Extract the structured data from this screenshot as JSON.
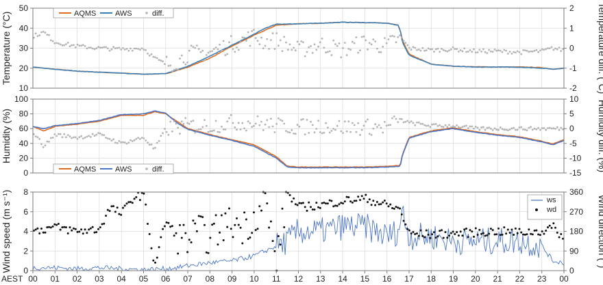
{
  "chart_data": [
    {
      "type": "line",
      "panel": "temperature",
      "ylabel": "Temperature (°C)",
      "y2label": "Temperature diff. (°C)",
      "ylim": [
        10,
        50
      ],
      "yticks": [
        "10",
        "20",
        "30",
        "40",
        "50"
      ],
      "y2lim": [
        -2,
        2
      ],
      "y2ticks": [
        "-2",
        "-1",
        "0",
        "1",
        "2"
      ],
      "legend_position": "top-left",
      "grid": true,
      "series": [
        {
          "name": "AQMS",
          "color": "#e06c1f",
          "x": [
            0,
            1,
            2,
            3,
            4,
            5,
            6,
            7,
            8,
            9,
            10,
            10.5,
            11,
            12,
            13,
            14,
            15,
            16,
            16.5,
            16.6,
            16.7,
            17,
            18,
            19,
            20,
            21,
            22,
            23,
            23.5,
            24
          ],
          "values": [
            20.5,
            19.5,
            18.5,
            18,
            17.5,
            17,
            17.2,
            20.5,
            25,
            31,
            36.5,
            39,
            41.5,
            42.2,
            42.5,
            43,
            42.8,
            42.5,
            41.5,
            39,
            34,
            27,
            22,
            21,
            20.7,
            20.6,
            20.6,
            20.3,
            19.5,
            20
          ]
        },
        {
          "name": "AWS",
          "color": "#3b7fb8",
          "x": [
            0,
            1,
            2,
            3,
            4,
            5,
            6,
            7,
            8,
            9,
            10,
            10.5,
            11,
            12,
            13,
            14,
            15,
            16,
            16.5,
            16.6,
            16.7,
            17,
            18,
            19,
            20,
            21,
            22,
            23,
            23.5,
            24
          ],
          "values": [
            20.5,
            19.5,
            18.5,
            18,
            17.5,
            17,
            17.3,
            21,
            26,
            31.5,
            37,
            40,
            42,
            42.2,
            42.5,
            43,
            42.8,
            42.5,
            41.5,
            39,
            33,
            26.5,
            22,
            21,
            20.5,
            20.6,
            20.5,
            20,
            19.5,
            20
          ]
        },
        {
          "name": "diff.",
          "color": "#b3b3b3",
          "x": [
            0,
            0.5,
            1,
            1.5,
            2,
            3,
            4,
            5,
            5.5,
            6,
            6.5,
            7,
            8,
            9,
            10,
            10.5,
            11,
            12,
            13,
            14,
            15,
            16,
            16.6,
            17,
            18,
            19,
            20,
            21,
            22,
            23,
            23.5,
            24
          ],
          "values": [
            0.6,
            0.8,
            0.3,
            0.2,
            0.1,
            0.0,
            -0.05,
            0.0,
            -0.5,
            -0.8,
            -0.7,
            -0.3,
            -0.2,
            0.2,
            0.6,
            0.3,
            0.4,
            -0.1,
            0.2,
            -0.1,
            0.3,
            0.1,
            0.6,
            0.0,
            -0.1,
            -0.05,
            -0.15,
            -0.15,
            -0.2,
            -0.15,
            0.0,
            -0.1
          ]
        }
      ]
    },
    {
      "type": "line",
      "panel": "humidity",
      "ylabel": "Humidity (%)",
      "y2label": "Humidity diff. (%)",
      "ylim": [
        0,
        100
      ],
      "yticks": [
        "0",
        "20",
        "40",
        "60",
        "80",
        "100"
      ],
      "y2lim": [
        -15,
        10
      ],
      "y2ticks": [
        "-15",
        "-10",
        "-5",
        "0",
        "5",
        "10"
      ],
      "legend_position": "bottom-left",
      "grid": true,
      "series": [
        {
          "name": "AQMS",
          "color": "#e06c1f",
          "x": [
            0,
            0.5,
            1,
            2,
            3,
            4,
            5,
            5.5,
            6,
            6.5,
            7,
            8,
            9,
            10,
            11,
            11.5,
            12,
            13,
            14,
            15,
            16,
            16.6,
            16.7,
            17,
            18,
            19,
            20,
            21,
            22,
            23,
            23.5,
            24
          ],
          "values": [
            63,
            57,
            63,
            66,
            70,
            78,
            78,
            83,
            80,
            70,
            60,
            52,
            45,
            38,
            22,
            9,
            8,
            8,
            8,
            8,
            9,
            10,
            25,
            48,
            57,
            61,
            56,
            52,
            49,
            43,
            39,
            45
          ]
        },
        {
          "name": "AWS",
          "color": "#4a74c4",
          "x": [
            0,
            0.5,
            1,
            2,
            3,
            4,
            5,
            5.5,
            6,
            6.5,
            7,
            8,
            9,
            10,
            11,
            11.5,
            12,
            13,
            14,
            15,
            16,
            16.6,
            16.7,
            17,
            18,
            19,
            20,
            21,
            22,
            23,
            23.5,
            24
          ],
          "values": [
            63,
            60,
            64,
            67,
            71,
            79,
            80,
            84,
            81,
            68,
            59,
            51,
            44,
            36,
            20,
            8,
            7,
            7,
            7,
            7,
            8,
            9,
            24,
            47,
            56,
            60,
            55,
            51,
            48,
            42,
            38,
            44
          ]
        },
        {
          "name": "diff.",
          "color": "#b3b3b3",
          "x": [
            0,
            0.5,
            1,
            2,
            3,
            4,
            5,
            5.5,
            6,
            7,
            8,
            9,
            10,
            11,
            12,
            13,
            14,
            15,
            16,
            16.6,
            17,
            18,
            19,
            20,
            21,
            22,
            23,
            24
          ],
          "values": [
            -1,
            -6,
            -2,
            -3,
            -2,
            -5,
            -3,
            -7,
            0,
            1,
            1,
            2,
            2,
            1,
            0.5,
            1,
            0.5,
            0.5,
            0.5,
            3,
            2,
            1,
            1,
            0,
            0,
            0,
            0,
            0
          ]
        }
      ]
    },
    {
      "type": "line",
      "panel": "wind",
      "ylabel": "Wind speed (m s⁻¹)",
      "y2label": "Wind direction (°)",
      "ylim": [
        0,
        8
      ],
      "yticks": [
        "0",
        "2",
        "4",
        "6",
        "8"
      ],
      "y2lim": [
        0,
        360
      ],
      "y2ticks": [
        "0",
        "90",
        "180",
        "270",
        "360"
      ],
      "legend_position": "top-right",
      "grid": true,
      "series": [
        {
          "name": "ws",
          "color": "#4a74c4",
          "x": [
            0,
            1,
            2,
            3,
            4,
            5,
            6,
            6.5,
            7,
            8,
            9,
            10,
            10.5,
            11,
            11.5,
            12,
            13,
            14,
            15,
            16,
            16.5,
            16.7,
            17,
            18,
            19,
            20,
            21,
            22,
            23,
            23.5,
            24
          ],
          "values": [
            0.3,
            0.3,
            0.2,
            0.3,
            0.2,
            0.1,
            0.2,
            0.3,
            0.5,
            0.8,
            1,
            1.5,
            2,
            2.5,
            3,
            4,
            4,
            4.5,
            4.5,
            3.5,
            4,
            6,
            3.5,
            3.5,
            3,
            3,
            3,
            3,
            2.5,
            1,
            0.8
          ]
        },
        {
          "name": "wd",
          "color": "#111111",
          "x": [
            0,
            0.5,
            1,
            2,
            3,
            3.5,
            4,
            4.5,
            5,
            5.5,
            6,
            6.5,
            7,
            7.5,
            8,
            8.5,
            9,
            9.5,
            10,
            10.5,
            11,
            11.5,
            12,
            13,
            14,
            15,
            16,
            16.6,
            17,
            18,
            19,
            20,
            21,
            22,
            23,
            23.5,
            24
          ],
          "values": [
            180,
            190,
            200,
            180,
            190,
            290,
            260,
            330,
            350,
            20,
            230,
            160,
            140,
            180,
            150,
            200,
            220,
            200,
            240,
            330,
            30,
            360,
            290,
            300,
            320,
            330,
            300,
            280,
            170,
            165,
            170,
            175,
            180,
            175,
            180,
            200,
            150
          ]
        }
      ]
    }
  ],
  "x_axis": {
    "prefix": "AEST",
    "ticks": [
      "00",
      "01",
      "02",
      "03",
      "04",
      "05",
      "06",
      "07",
      "08",
      "09",
      "10",
      "11",
      "12",
      "13",
      "14",
      "15",
      "16",
      "17",
      "18",
      "19",
      "20",
      "21",
      "22",
      "23",
      "00"
    ]
  }
}
